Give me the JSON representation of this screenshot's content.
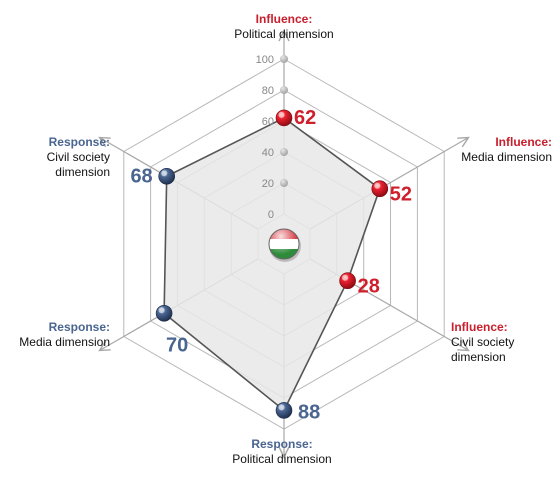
{
  "colors": {
    "influence": "#d01f2c",
    "response": "#4a6590",
    "influence_text": "#c8202e",
    "response_text": "#4a6590",
    "grid": "#b8b8b8",
    "axis_arrow": "#a8a8a8",
    "polygon_fill": "#e8e8e8",
    "polygon_stroke": "#555555",
    "tick_text": "#888888",
    "flag": [
      "#d2232a",
      "#ffffff",
      "#2e8b3a"
    ]
  },
  "labels": {
    "inf_political": {
      "head": "Influence:",
      "sub": "Political dimension"
    },
    "inf_media": {
      "head": "Influence:",
      "sub": "Media dimension"
    },
    "inf_civil": {
      "head": "Influence:",
      "sub1": "Civil society",
      "sub2": "dimension"
    },
    "res_political": {
      "head": "Response:",
      "sub": "Political dimension"
    },
    "res_media": {
      "head": "Response:",
      "sub": "Media dimension"
    },
    "res_civil": {
      "head": "Response:",
      "sub1": "Civil society",
      "sub2": "dimension"
    }
  },
  "center_icon": "hungary-flag-ball-icon",
  "chart_data": {
    "type": "radar",
    "rmax": 100,
    "ticks": [
      "0",
      "20",
      "40",
      "60",
      "80",
      "100"
    ],
    "axes": [
      {
        "group": "influence",
        "dimension": "Political dimension",
        "value": 62
      },
      {
        "group": "influence",
        "dimension": "Media dimension",
        "value": 52
      },
      {
        "group": "influence",
        "dimension": "Civil society dimension",
        "value": 28
      },
      {
        "group": "response",
        "dimension": "Political dimension",
        "value": 88
      },
      {
        "group": "response",
        "dimension": "Media dimension",
        "value": 70
      },
      {
        "group": "response",
        "dimension": "Civil society dimension",
        "value": 68
      }
    ]
  }
}
